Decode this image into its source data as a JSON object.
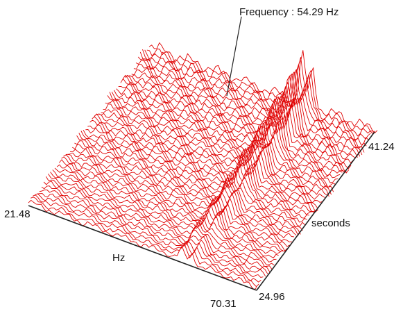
{
  "chart_data": {
    "type": "waterfall-3d",
    "annotation": "Frequency : 54.29 Hz",
    "x_axis": {
      "label": "Hz",
      "min_label": "21.48",
      "max_label": "70.31",
      "range": [
        21.48,
        70.31
      ]
    },
    "y_axis": {
      "label": "seconds",
      "min_label": "24.96",
      "max_label": "41.24",
      "range": [
        24.96,
        41.24
      ]
    },
    "peak_frequency_hz": 54.29,
    "secondary_peak_frequency_hz": 56.5,
    "line_color": "#e00000",
    "grid": false
  }
}
